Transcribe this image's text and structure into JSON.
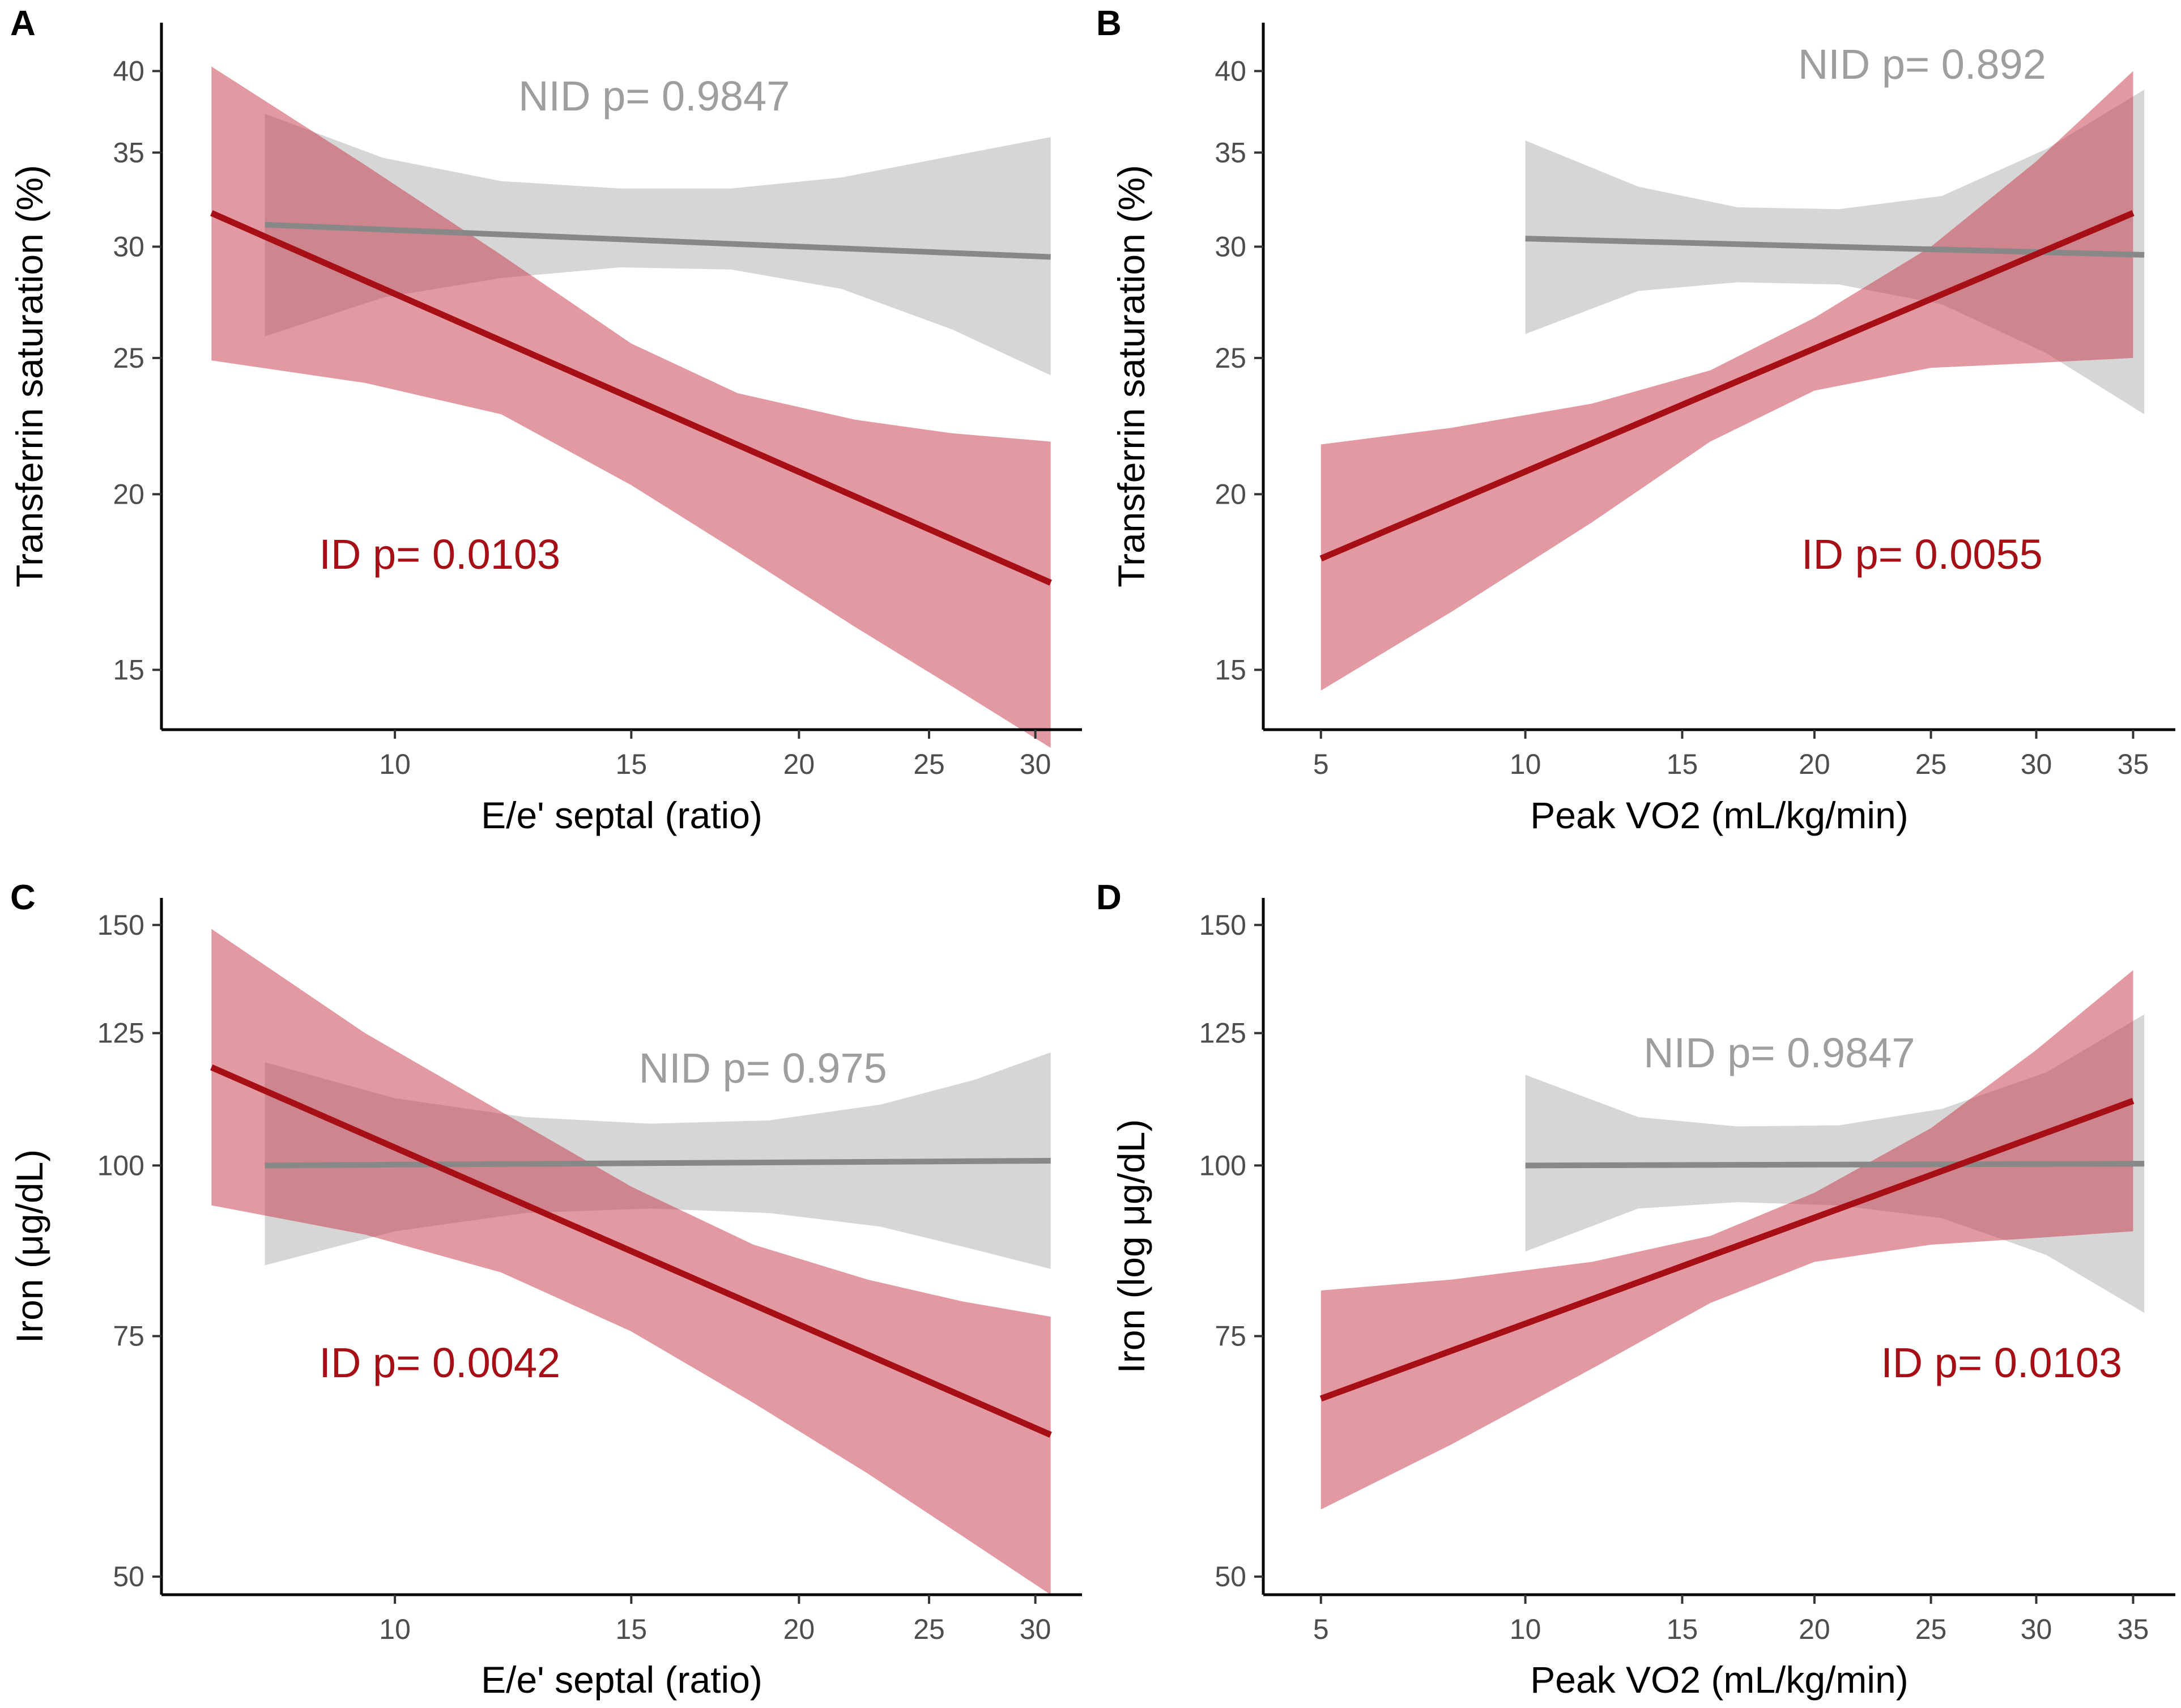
{
  "colors": {
    "id_line": "#a50f15",
    "id_band": "#c93c4b",
    "nid_line": "#888888",
    "nid_band": "#bdbdbd",
    "nid_text": "#9e9e9e",
    "axis": "#000000",
    "tick_text": "#4d4d4d"
  },
  "chart_data": [
    {
      "panel": "A",
      "type": "line",
      "x_scale": "log",
      "y_scale": "log",
      "xlabel": "E/e' septal (ratio)",
      "ylabel": "Transferrin saturation (%)",
      "xlim": [
        6.7,
        32.5
      ],
      "ylim": [
        13.6,
        43.3
      ],
      "x_ticks": [
        10,
        15,
        20,
        25,
        30
      ],
      "y_ticks": [
        15,
        20,
        25,
        30,
        35,
        40
      ],
      "series": [
        {
          "name": "NID",
          "annotation": "NID p= 0.9847",
          "annotation_pos": [
            15.6,
            37.5
          ],
          "x": [
            8.0,
            30.8
          ],
          "y": [
            31.1,
            29.5
          ],
          "band_x": [
            8.0,
            9.8,
            12.0,
            14.7,
            17.8,
            21.5,
            26.0,
            30.8
          ],
          "band_lo": [
            25.9,
            27.6,
            28.5,
            29.0,
            28.9,
            28.0,
            26.2,
            24.3
          ],
          "band_hi": [
            37.3,
            34.7,
            33.4,
            33.0,
            33.0,
            33.6,
            34.8,
            35.9
          ]
        },
        {
          "name": "ID",
          "annotation": "ID p= 0.0103",
          "annotation_pos": [
            10.8,
            17.7
          ],
          "x": [
            7.3,
            30.8
          ],
          "y": [
            31.7,
            17.3
          ],
          "band_x": [
            7.3,
            9.5,
            12.0,
            15.0,
            18.0,
            22.0,
            26.0,
            30.8
          ],
          "band_lo": [
            24.9,
            24.0,
            22.8,
            20.3,
            18.2,
            16.1,
            14.6,
            13.2
          ],
          "band_hi": [
            40.3,
            34.3,
            29.6,
            25.6,
            23.6,
            22.6,
            22.1,
            21.8
          ]
        }
      ]
    },
    {
      "panel": "B",
      "type": "line",
      "x_scale": "sqrt",
      "y_scale": "log",
      "xlabel": "Peak VO2 (mL/kg/min)",
      "ylabel": "Transferrin saturation (%)",
      "xlim": [
        3.9,
        37.3
      ],
      "ylim": [
        13.6,
        43.3
      ],
      "x_ticks": [
        5,
        10,
        15,
        20,
        25,
        30,
        35
      ],
      "y_ticks": [
        15,
        20,
        25,
        30,
        35,
        40
      ],
      "series": [
        {
          "name": "NID",
          "annotation": "NID p= 0.892",
          "annotation_pos": [
            24.6,
            39.5
          ],
          "x": [
            10.0,
            35.6
          ],
          "y": [
            30.4,
            29.6
          ],
          "band_x": [
            10.0,
            13.5,
            17.0,
            21.0,
            25.5,
            30.5,
            35.6
          ],
          "band_lo": [
            26.0,
            27.9,
            28.3,
            28.2,
            27.3,
            25.2,
            22.8
          ],
          "band_hi": [
            35.7,
            33.1,
            32.0,
            31.9,
            32.6,
            35.2,
            38.8
          ]
        },
        {
          "name": "ID",
          "annotation": "ID p= 0.0055",
          "annotation_pos": [
            24.6,
            17.7
          ],
          "x": [
            5.0,
            35.0
          ],
          "y": [
            18.0,
            31.7
          ],
          "band_x": [
            5.0,
            8.0,
            12.0,
            16.0,
            20.0,
            25.0,
            30.0,
            35.0
          ],
          "band_lo": [
            14.5,
            16.5,
            19.1,
            21.8,
            23.7,
            24.6,
            24.8,
            25.0
          ],
          "band_hi": [
            21.7,
            22.3,
            23.2,
            24.5,
            26.7,
            30.0,
            34.5,
            40.0
          ]
        }
      ]
    },
    {
      "panel": "C",
      "type": "line",
      "x_scale": "log",
      "y_scale": "log",
      "xlabel": "E/e' septal (ratio)",
      "ylabel": "Iron (μg/dL)",
      "xlim": [
        6.7,
        32.5
      ],
      "ylim": [
        48.5,
        157
      ],
      "x_ticks": [
        10,
        15,
        20,
        25,
        30
      ],
      "y_ticks": [
        50,
        75,
        100,
        125,
        150
      ],
      "series": [
        {
          "name": "NID",
          "annotation": "NID p= 0.975",
          "annotation_pos": [
            18.8,
            115
          ],
          "x": [
            8.0,
            30.8
          ],
          "y": [
            100,
            100.8
          ],
          "band_x": [
            8.0,
            10.0,
            12.5,
            15.5,
            19.0,
            23.0,
            27.0,
            30.8
          ],
          "band_lo": [
            84.5,
            89.5,
            92.3,
            93.0,
            92.3,
            90.2,
            86.8,
            84.0
          ],
          "band_hi": [
            119,
            112,
            108.5,
            107.3,
            107.9,
            110.8,
            115.5,
            121
          ]
        },
        {
          "name": "ID",
          "annotation": "ID p= 0.0042",
          "annotation_pos": [
            10.8,
            70
          ],
          "x": [
            7.3,
            30.8
          ],
          "y": [
            118,
            63.5
          ],
          "band_x": [
            7.3,
            9.5,
            12.0,
            15.0,
            18.5,
            22.5,
            26.5,
            30.8
          ],
          "band_lo": [
            93.5,
            89.0,
            83.5,
            75.6,
            67.0,
            59.5,
            53.5,
            48.5
          ],
          "band_hi": [
            149,
            125,
            109.5,
            96.5,
            87.5,
            82.5,
            79.5,
            77.5
          ]
        }
      ]
    },
    {
      "panel": "D",
      "type": "line",
      "x_scale": "sqrt",
      "y_scale": "log",
      "xlabel": "Peak VO2 (mL/kg/min)",
      "ylabel": "Iron (log μg/dL)",
      "xlim": [
        3.9,
        37.3
      ],
      "ylim": [
        48.5,
        157
      ],
      "x_ticks": [
        5,
        10,
        15,
        20,
        25,
        30,
        35
      ],
      "y_ticks": [
        50,
        75,
        100,
        125,
        150
      ],
      "series": [
        {
          "name": "NID",
          "annotation": "NID p= 0.9847",
          "annotation_pos": [
            18.6,
            118
          ],
          "x": [
            10.0,
            35.6
          ],
          "y": [
            100,
            100.3
          ],
          "band_x": [
            10.0,
            13.5,
            17.0,
            21.0,
            25.5,
            30.5,
            35.6
          ],
          "band_lo": [
            86.5,
            93.0,
            94.0,
            93.5,
            91.5,
            86.0,
            78.0
          ],
          "band_hi": [
            116.5,
            108.5,
            106.8,
            107.0,
            110.0,
            117.0,
            129.0
          ]
        },
        {
          "name": "ID",
          "annotation": "ID p= 0.0103",
          "annotation_pos": [
            28.3,
            70
          ],
          "x": [
            5.0,
            35.0
          ],
          "y": [
            67.5,
            111.5
          ],
          "band_x": [
            5.0,
            8.0,
            12.0,
            16.0,
            20.0,
            25.0,
            30.0,
            35.0
          ],
          "band_lo": [
            56.0,
            62.5,
            71.0,
            79.3,
            85.0,
            87.5,
            88.5,
            89.5
          ],
          "band_hi": [
            81.0,
            82.5,
            85.0,
            88.8,
            95.5,
            106.5,
            121.5,
            139.0
          ]
        }
      ]
    }
  ]
}
